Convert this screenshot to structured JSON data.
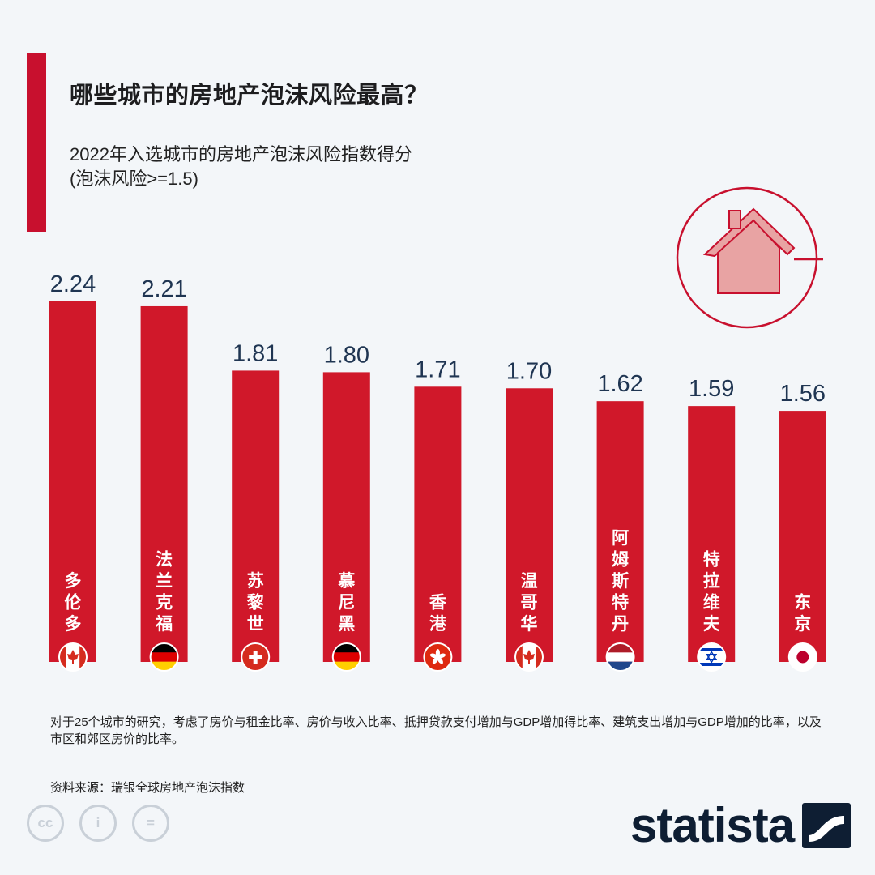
{
  "header": {
    "title": "哪些城市的房地产泡沫风险最高？",
    "subtitle_line1": "2022年入选城市的房地产泡沫风险指数得分",
    "subtitle_line2": "(泡沫风险>=1.5)"
  },
  "chart_data": {
    "type": "bar",
    "categories": [
      "多伦多",
      "法兰克福",
      "苏黎世",
      "慕尼黑",
      "香港",
      "温哥华",
      "阿姆斯特丹",
      "特拉维夫",
      "东京"
    ],
    "values": [
      2.24,
      2.21,
      1.81,
      1.8,
      1.71,
      1.7,
      1.62,
      1.59,
      1.56
    ],
    "value_labels": [
      "2.24",
      "2.21",
      "1.81",
      "1.80",
      "1.71",
      "1.70",
      "1.62",
      "1.59",
      "1.56"
    ],
    "flags": [
      "canada",
      "germany",
      "switzerland",
      "germany",
      "hong-kong",
      "canada",
      "netherlands",
      "israel",
      "japan"
    ],
    "ylim": [
      0,
      2.24
    ],
    "bar_color": "#d0182a",
    "grid": false,
    "legend": "none"
  },
  "colors": {
    "accent": "#c8102e",
    "bar": "#d0182a",
    "label": "#1f3552",
    "brand": "#0e1e33"
  },
  "footer": {
    "note": "对于25个城市的研究，考虑了房价与租金比率、房价与收入比率、抵押贷款支付增加与GDP增加得比率、建筑支出增加与GDP增加的比率，以及市区和郊区房价的比率。",
    "source": "资料来源：瑞银全球房地产泡沫指数",
    "license_icons": [
      "cc-icon",
      "attribution-icon",
      "no-derivatives-icon"
    ],
    "license_labels": [
      "cc",
      "i",
      "="
    ],
    "brand": "statista"
  }
}
